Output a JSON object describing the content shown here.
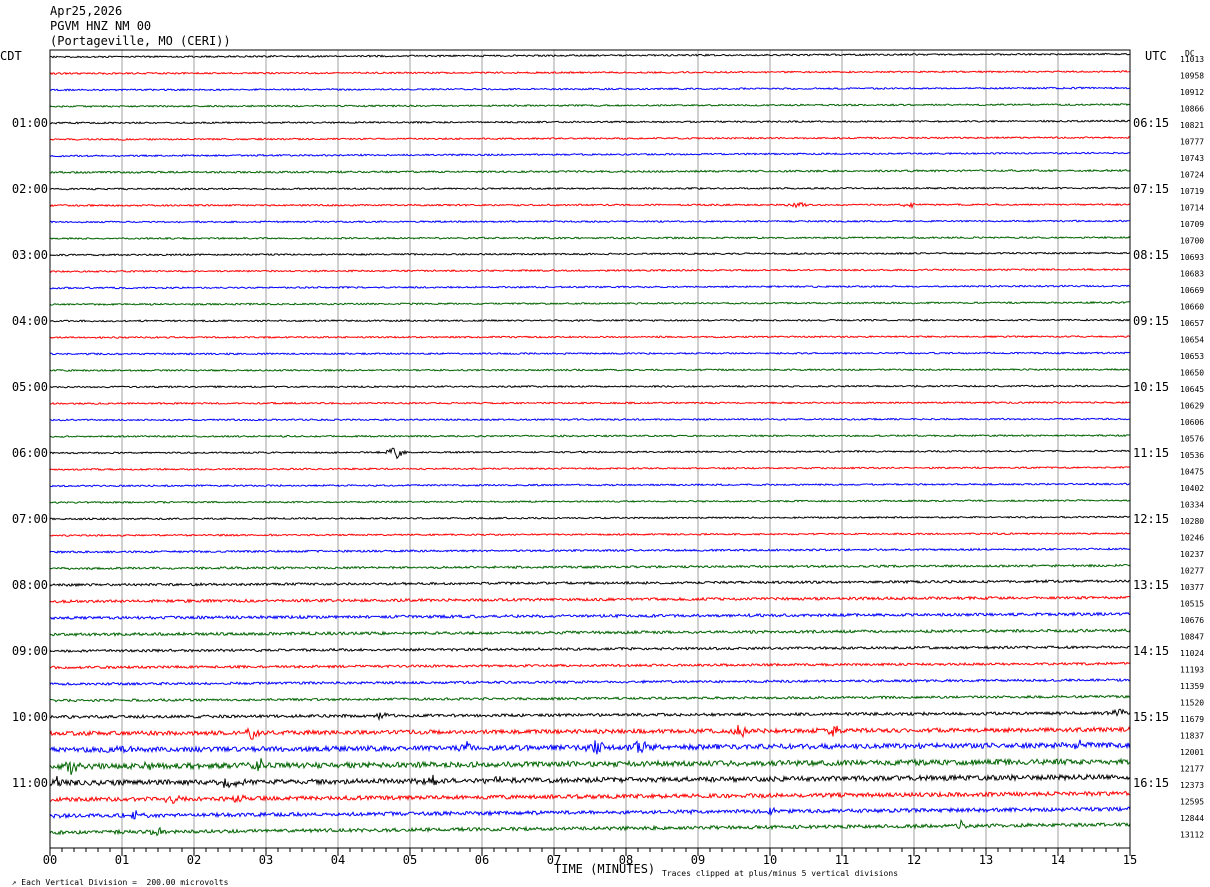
{
  "header": {
    "date": "Apr25,2026",
    "station": "PGVM HNZ NM 00",
    "location": "(Portageville, MO (CERI))"
  },
  "axis": {
    "left_tz": "CDT",
    "right_tz": "UTC",
    "dc_label": "DC",
    "xlabel": "TIME (MINUTES)",
    "x_ticks": [
      "00",
      "01",
      "02",
      "03",
      "04",
      "05",
      "06",
      "07",
      "08",
      "09",
      "10",
      "11",
      "12",
      "13",
      "14",
      "15"
    ]
  },
  "footer": {
    "scale_note": "Each Vertical Division =  200.00 microvolts",
    "clip_note": "Traces clipped at plus/minus 5 vertical divisions"
  },
  "chart_data": {
    "type": "line",
    "title": "PGVM HNZ NM 00",
    "xlabel": "TIME (MINUTES)",
    "xlim": [
      0,
      15
    ],
    "trace_colors": [
      "#000000",
      "#ff0000",
      "#0000ff",
      "#006400"
    ],
    "left_hour_labels": [
      "01:00",
      "02:00",
      "03:00",
      "04:00",
      "05:00",
      "06:00",
      "07:00",
      "08:00",
      "09:00",
      "10:00",
      "11:00"
    ],
    "right_hour_labels": [
      "06:15",
      "07:15",
      "08:15",
      "09:15",
      "10:15",
      "11:15",
      "12:15",
      "13:15",
      "14:15",
      "15:15",
      "16:15"
    ],
    "dc_offsets": [
      11013,
      10958,
      10912,
      10866,
      10821,
      10777,
      10743,
      10724,
      10719,
      10714,
      10709,
      10700,
      10693,
      10683,
      10669,
      10660,
      10657,
      10654,
      10653,
      10650,
      10645,
      10629,
      10606,
      10576,
      10536,
      10475,
      10402,
      10334,
      10280,
      10246,
      10237,
      10277,
      10377,
      10515,
      10676,
      10847,
      11024,
      11193,
      11359,
      11520,
      11679,
      11837,
      12001,
      12177,
      12373,
      12595,
      12844,
      13112
    ],
    "trace_noise_level": [
      1,
      1,
      1,
      1,
      1,
      1,
      1,
      1.2,
      1,
      1,
      1,
      1,
      1,
      1,
      1,
      1,
      1,
      1,
      1,
      1,
      1,
      1,
      1,
      1,
      1,
      1,
      1,
      1,
      1,
      1,
      1.2,
      1.4,
      1.5,
      1.7,
      1.8,
      1.8,
      1.6,
      1.5,
      1.5,
      1.5,
      1.8,
      2.6,
      3.2,
      3.4,
      3.2,
      2.6,
      2.4,
      2.2
    ],
    "trace_drift": [
      -3,
      -2,
      -2,
      -2,
      -2,
      -2,
      -3,
      -2,
      -1,
      -1,
      -1,
      -1,
      -2,
      -2,
      -2,
      -2,
      -1,
      -1,
      -1,
      -1,
      -1,
      -1,
      -1,
      -1,
      -2,
      -2,
      -2,
      -2,
      -2,
      -2,
      -3,
      -3,
      -4,
      -4,
      -4,
      -4,
      -4,
      -4,
      -4,
      -4,
      -4,
      -4,
      -5,
      -5,
      -6,
      -6,
      -7,
      -8
    ],
    "events": [
      {
        "row": 9,
        "minute": 10.4,
        "amplitude": 4
      },
      {
        "row": 9,
        "minute": 11.95,
        "amplitude": 3
      },
      {
        "row": 24,
        "minute": 4.8,
        "amplitude": 8
      },
      {
        "row": 40,
        "minute": 4.6,
        "amplitude": 4
      },
      {
        "row": 40,
        "minute": 14.85,
        "amplitude": 6
      },
      {
        "row": 41,
        "minute": 2.8,
        "amplitude": 6
      },
      {
        "row": 41,
        "minute": 9.6,
        "amplitude": 7
      },
      {
        "row": 41,
        "minute": 10.9,
        "amplitude": 6
      },
      {
        "row": 42,
        "minute": 1.0,
        "amplitude": 5
      },
      {
        "row": 42,
        "minute": 5.8,
        "amplitude": 5
      },
      {
        "row": 42,
        "minute": 7.6,
        "amplitude": 9
      },
      {
        "row": 42,
        "minute": 8.2,
        "amplitude": 11
      },
      {
        "row": 42,
        "minute": 14.3,
        "amplitude": 8
      },
      {
        "row": 43,
        "minute": 0.3,
        "amplitude": 7
      },
      {
        "row": 43,
        "minute": 1.4,
        "amplitude": 6
      },
      {
        "row": 43,
        "minute": 2.9,
        "amplitude": 8
      },
      {
        "row": 44,
        "minute": 0.1,
        "amplitude": 6
      },
      {
        "row": 44,
        "minute": 2.5,
        "amplitude": 9
      },
      {
        "row": 44,
        "minute": 5.3,
        "amplitude": 6
      },
      {
        "row": 44,
        "minute": 6.2,
        "amplitude": 5
      },
      {
        "row": 45,
        "minute": 1.7,
        "amplitude": 5
      },
      {
        "row": 45,
        "minute": 2.6,
        "amplitude": 6
      },
      {
        "row": 46,
        "minute": 1.2,
        "amplitude": 5
      },
      {
        "row": 46,
        "minute": 10.0,
        "amplitude": 4
      },
      {
        "row": 47,
        "minute": 1.5,
        "amplitude": 5
      },
      {
        "row": 47,
        "minute": 12.65,
        "amplitude": 6
      }
    ]
  }
}
